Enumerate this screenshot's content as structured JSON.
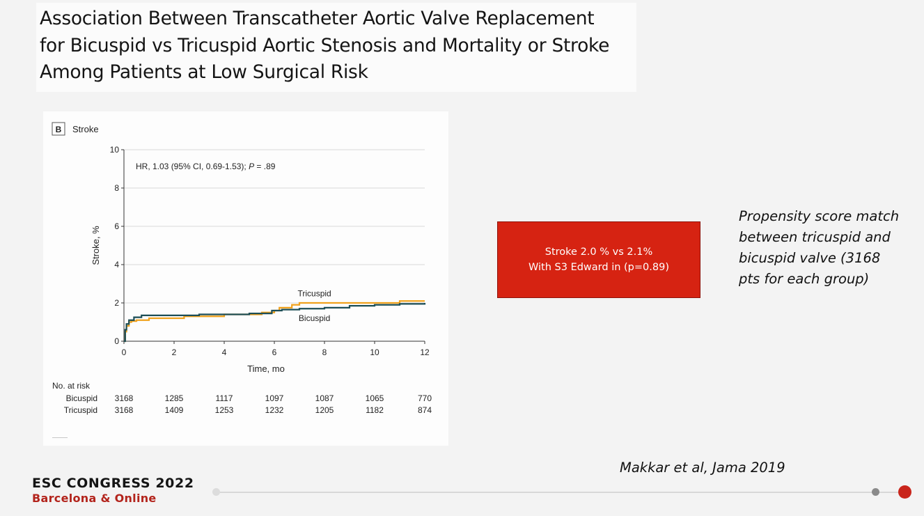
{
  "slide": {
    "title": "Association Between Transcatheter Aortic Valve Replacement\nfor Bicuspid vs Tricuspid Aortic Stenosis and Mortality or Stroke\nAmong Patients at Low Surgical Risk",
    "callout": {
      "line1": "Stroke 2.0 % vs 2.1%",
      "line2": "With S3 Edward in (p=0.89)",
      "color": "#d62312"
    },
    "side_note": "Propensity score match\nbetween tricuspid and\nbicuspid valve (3168\npts for each group)",
    "citation": "Makkar et al, Jama 2019",
    "footer": {
      "congress": "ESC CONGRESS 2022",
      "location": "Barcelona & Online",
      "accent_color": "#b3241c"
    }
  },
  "chart_data": {
    "type": "line",
    "panel_letter": "B",
    "panel_title": "Stroke",
    "annotation_prefix": "HR, 1.03 (95% CI, 0.69-1.53); ",
    "annotation_p": "P",
    "annotation_suffix": " = .89",
    "xlabel": "Time, mo",
    "ylabel": "Stroke, %",
    "xlim": [
      0,
      12
    ],
    "ylim": [
      0,
      10
    ],
    "xticks": [
      0,
      2,
      4,
      6,
      8,
      10,
      12
    ],
    "yticks": [
      0,
      2,
      4,
      6,
      8,
      10
    ],
    "grid": "horizontal",
    "series": [
      {
        "name": "Tricuspid",
        "color": "#f0a21e",
        "x": [
          0,
          0.05,
          0.1,
          0.2,
          0.3,
          0.5,
          1,
          2.4,
          4,
          5.5,
          6,
          6.2,
          6.7,
          7,
          8,
          9,
          10,
          11,
          12
        ],
        "y": [
          0,
          0.5,
          0.8,
          1.0,
          1.05,
          1.1,
          1.2,
          1.3,
          1.4,
          1.5,
          1.6,
          1.75,
          1.9,
          2.0,
          2.0,
          2.0,
          2.0,
          2.1,
          2.1
        ]
      },
      {
        "name": "Bicuspid",
        "color": "#1d4e56",
        "x": [
          0,
          0.05,
          0.1,
          0.2,
          0.4,
          0.7,
          1,
          2,
          3,
          5,
          5.9,
          6.3,
          7,
          8,
          9,
          10,
          11,
          12
        ],
        "y": [
          0,
          0.6,
          0.9,
          1.1,
          1.25,
          1.35,
          1.35,
          1.35,
          1.4,
          1.45,
          1.6,
          1.65,
          1.7,
          1.75,
          1.85,
          1.9,
          1.95,
          2.0
        ]
      }
    ],
    "risk_table": {
      "header": "No. at risk",
      "rows": [
        {
          "label": "Bicuspid",
          "values": [
            "3168",
            "1285",
            "1117",
            "1097",
            "1087",
            "1065",
            "770"
          ]
        },
        {
          "label": "Tricuspid",
          "values": [
            "3168",
            "1409",
            "1253",
            "1232",
            "1205",
            "1182",
            "874"
          ]
        }
      ]
    }
  }
}
